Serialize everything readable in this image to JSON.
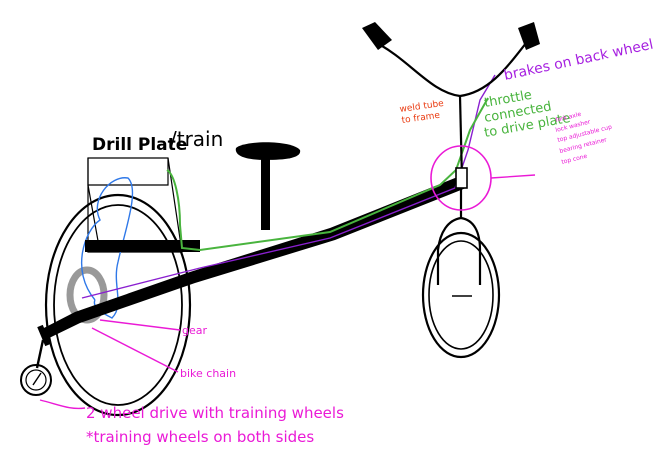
{
  "colors": {
    "ink": "#000000",
    "magenta": "#ea1ad6",
    "purple": "#a61fe0",
    "green": "#49b43e",
    "blue": "#2f78e8",
    "red": "#ea3a10",
    "pink": "#f0a3d2",
    "gray": "#999999",
    "wire": "#8a1fd0"
  },
  "labels": {
    "drill_plate": "Drill Plate",
    "train": "/train",
    "brakes": "brakes on back wheel",
    "throttle_1": "throttle",
    "throttle_2": "connected",
    "throttle_3": "to drive plate",
    "weld_1": "weld tube",
    "weld_2": "to frame",
    "fork_1": "fork axle",
    "fork_2": "lock washer",
    "fork_3": "top adjustable cup",
    "fork_4": "bearing retainer",
    "fork_5": "top cone",
    "gear": "gear",
    "bike_chain": "bike chain",
    "drive_note_1": "2 wheel drive with training wheels",
    "drive_note_2": "*training wheels on both sides"
  }
}
